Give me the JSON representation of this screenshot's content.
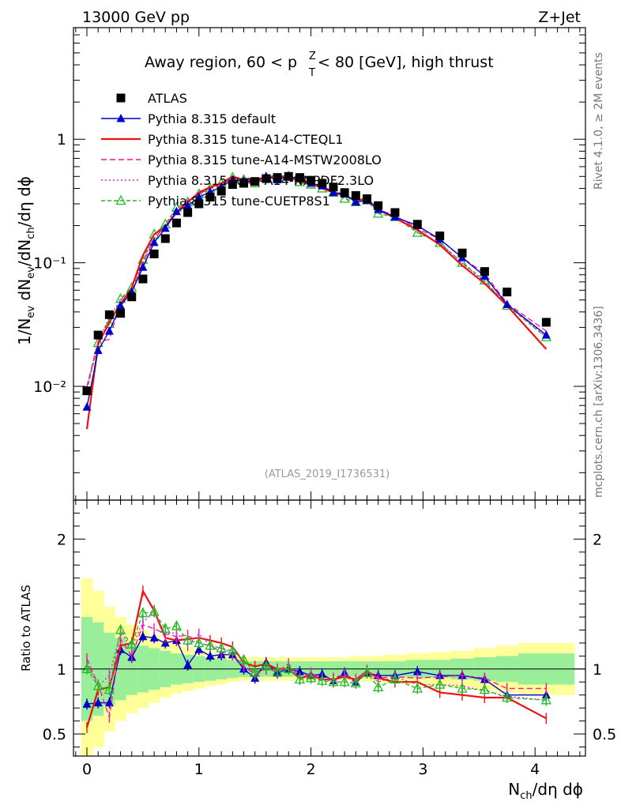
{
  "header": {
    "energy_label": "13000 GeV pp",
    "process_label": "Z+Jet",
    "plot_title": "Away region, 60 < p",
    "plot_title_sup": "Z",
    "plot_title_sub": "T",
    "plot_title_rest": " < 80 [GeV], high thrust",
    "side_label_top": "Rivet 4.1.0, ≥ 2M events",
    "side_label_bottom": "mcplots.cern.ch [arXiv:1306.3436]",
    "analysis_id": "(ATLAS_2019_I1736531)"
  },
  "chart_data": [
    {
      "type": "scatter",
      "panel": "main",
      "ylabel": "1/N_ev dN_ev/dN_ch/dη dϕ",
      "yscale": "log",
      "ylim": [
        0.0012,
        8
      ],
      "xlim": [
        -0.12,
        4.45
      ],
      "ytick_labels": [
        "10⁻²",
        "10⁻¹",
        "1"
      ],
      "ytick_values": [
        0.01,
        0.1,
        1
      ],
      "legend": [
        "ATLAS",
        "Pythia 8.315 default",
        "Pythia 8.315 tune-A14-CTEQL1",
        "Pythia 8.315 tune-A14-MSTW2008LO",
        "Pythia 8.315 tune-A14-NNPDF2.3LO",
        "Pythia 8.315 tune-CUETP8S1"
      ],
      "x": [
        0.0,
        0.1,
        0.2,
        0.3,
        0.4,
        0.5,
        0.6,
        0.7,
        0.8,
        0.9,
        1.0,
        1.1,
        1.2,
        1.3,
        1.4,
        1.5,
        1.6,
        1.7,
        1.8,
        1.9,
        2.0,
        2.1,
        2.2,
        2.3,
        2.4,
        2.5,
        2.6,
        2.75,
        2.95,
        3.15,
        3.35,
        3.55,
        3.75,
        4.1
      ],
      "series": [
        {
          "name": "ATLAS",
          "color": "#000000",
          "values": [
            0.0092,
            0.026,
            0.038,
            0.039,
            0.053,
            0.074,
            0.118,
            0.157,
            0.21,
            0.255,
            0.3,
            0.34,
            0.38,
            0.43,
            0.44,
            0.455,
            0.48,
            0.49,
            0.5,
            0.49,
            0.465,
            0.44,
            0.41,
            0.37,
            0.35,
            0.33,
            0.29,
            0.255,
            0.205,
            0.165,
            0.12,
            0.085,
            0.058,
            0.033
          ]
        },
        {
          "name": "Pythia 8.315 default",
          "color": "#0000cc",
          "values": [
            0.0068,
            0.0195,
            0.028,
            0.045,
            0.058,
            0.092,
            0.146,
            0.19,
            0.26,
            0.29,
            0.34,
            0.375,
            0.41,
            0.47,
            0.46,
            0.45,
            0.5,
            0.47,
            0.5,
            0.48,
            0.44,
            0.42,
            0.37,
            0.36,
            0.31,
            0.32,
            0.27,
            0.235,
            0.2,
            0.155,
            0.11,
            0.078,
            0.046,
            0.026
          ]
        },
        {
          "name": "Pythia 8.315 tune-A14-CTEQL1",
          "color": "#ee1111",
          "values": [
            0.0045,
            0.022,
            0.033,
            0.046,
            0.063,
            0.115,
            0.17,
            0.195,
            0.255,
            0.31,
            0.37,
            0.41,
            0.44,
            0.5,
            0.47,
            0.465,
            0.5,
            0.5,
            0.5,
            0.45,
            0.44,
            0.4,
            0.37,
            0.35,
            0.32,
            0.33,
            0.27,
            0.23,
            0.185,
            0.14,
            0.095,
            0.068,
            0.045,
            0.02
          ]
        },
        {
          "name": "Pythia 8.315 tune-A14-MSTW2008LO",
          "color": "#ff1493",
          "values": [
            0.01,
            0.023,
            0.024,
            0.048,
            0.058,
            0.099,
            0.155,
            0.2,
            0.26,
            0.32,
            0.36,
            0.4,
            0.43,
            0.48,
            0.45,
            0.44,
            0.48,
            0.48,
            0.52,
            0.45,
            0.45,
            0.4,
            0.38,
            0.355,
            0.32,
            0.33,
            0.27,
            0.24,
            0.19,
            0.155,
            0.11,
            0.082,
            0.047,
            0.028
          ]
        },
        {
          "name": "Pythia 8.315 tune-A14-NNPDF2.3LO",
          "color": "#dd22dd",
          "values": [
            0.0098,
            0.023,
            0.036,
            0.05,
            0.062,
            0.1,
            0.17,
            0.2,
            0.27,
            0.3,
            0.38,
            0.4,
            0.44,
            0.48,
            0.45,
            0.44,
            0.48,
            0.49,
            0.5,
            0.45,
            0.44,
            0.41,
            0.37,
            0.35,
            0.31,
            0.32,
            0.26,
            0.24,
            0.18,
            0.145,
            0.1,
            0.07,
            0.046,
            0.025
          ]
        },
        {
          "name": "Pythia 8.315 tune-CUETP8S1",
          "color": "#22bb22",
          "values": [
            0.0092,
            0.0225,
            0.032,
            0.051,
            0.063,
            0.106,
            0.17,
            0.205,
            0.28,
            0.31,
            0.36,
            0.4,
            0.44,
            0.49,
            0.47,
            0.44,
            0.49,
            0.48,
            0.5,
            0.45,
            0.43,
            0.4,
            0.37,
            0.33,
            0.31,
            0.32,
            0.25,
            0.235,
            0.175,
            0.145,
            0.1,
            0.072,
            0.045,
            0.025
          ]
        }
      ]
    },
    {
      "type": "scatter",
      "panel": "ratio",
      "ylabel": "Ratio to ATLAS",
      "xlabel": "N_ch/dη dϕ",
      "ylim": [
        0.33,
        2.3
      ],
      "xlim": [
        -0.12,
        4.45
      ],
      "ytick_labels": [
        "0.5",
        "1",
        "2"
      ],
      "ytick_values": [
        0.5,
        1,
        2
      ],
      "xtick_labels": [
        "0",
        "1",
        "2",
        "3",
        "4"
      ],
      "xtick_values": [
        0,
        1,
        2,
        3,
        4
      ],
      "reference": 1.0,
      "band_edges": [
        -0.05,
        0.05,
        0.15,
        0.25,
        0.35,
        0.45,
        0.55,
        0.65,
        0.75,
        0.85,
        0.95,
        1.05,
        1.15,
        1.25,
        1.35,
        1.45,
        1.55,
        1.65,
        1.75,
        1.85,
        1.95,
        2.05,
        2.15,
        2.25,
        2.35,
        2.45,
        2.55,
        2.65,
        2.85,
        3.05,
        3.25,
        3.45,
        3.65,
        3.85,
        4.35
      ],
      "band_inner": [
        0.4,
        0.36,
        0.28,
        0.24,
        0.2,
        0.18,
        0.16,
        0.14,
        0.12,
        0.11,
        0.1,
        0.09,
        0.08,
        0.07,
        0.06,
        0.06,
        0.06,
        0.06,
        0.06,
        0.06,
        0.06,
        0.06,
        0.06,
        0.06,
        0.06,
        0.06,
        0.06,
        0.06,
        0.07,
        0.07,
        0.08,
        0.09,
        0.1,
        0.12
      ],
      "band_outer": [
        0.7,
        0.6,
        0.48,
        0.4,
        0.34,
        0.3,
        0.26,
        0.22,
        0.19,
        0.17,
        0.15,
        0.13,
        0.12,
        0.1,
        0.09,
        0.09,
        0.09,
        0.09,
        0.09,
        0.09,
        0.09,
        0.09,
        0.09,
        0.09,
        0.1,
        0.1,
        0.1,
        0.11,
        0.12,
        0.13,
        0.14,
        0.16,
        0.18,
        0.2
      ],
      "series": [
        {
          "name": "Pythia 8.315 default",
          "values": [
            0.73,
            0.74,
            0.74,
            1.15,
            1.09,
            1.25,
            1.24,
            1.2,
            1.22,
            1.03,
            1.15,
            1.1,
            1.11,
            1.11,
            1.0,
            0.93,
            1.05,
            0.97,
            1.0,
            0.98,
            0.95,
            0.96,
            0.91,
            0.97,
            0.9,
            0.97,
            0.95,
            0.95,
            0.98,
            0.95,
            0.95,
            0.92,
            0.8,
            0.8
          ]
        },
        {
          "name": "Pythia 8.315 tune-A14-CTEQL1",
          "values": [
            0.55,
            0.84,
            0.86,
            1.18,
            1.2,
            1.6,
            1.45,
            1.24,
            1.22,
            1.23,
            1.24,
            1.22,
            1.2,
            1.17,
            1.05,
            1.02,
            1.04,
            1.0,
            1.0,
            0.93,
            0.95,
            0.92,
            0.92,
            0.94,
            0.92,
            0.98,
            0.93,
            0.9,
            0.9,
            0.82,
            0.8,
            0.78,
            0.78,
            0.62
          ]
        },
        {
          "name": "Pythia 8.315 tune-A14-MSTW2008LO",
          "values": [
            1.08,
            0.88,
            0.63,
            1.23,
            1.1,
            1.34,
            1.31,
            1.27,
            1.25,
            1.26,
            1.2,
            1.18,
            1.13,
            1.11,
            1.02,
            0.96,
            1.0,
            0.98,
            1.04,
            0.93,
            0.97,
            0.92,
            0.93,
            0.96,
            0.92,
            0.99,
            0.93,
            0.94,
            0.93,
            0.94,
            0.95,
            0.93,
            0.85,
            0.85
          ]
        },
        {
          "name": "Pythia 8.315 tune-A14-NNPDF2.3LO",
          "values": [
            1.05,
            0.87,
            0.95,
            1.28,
            1.17,
            1.36,
            1.44,
            1.27,
            1.28,
            1.18,
            1.27,
            1.18,
            1.16,
            1.12,
            1.02,
            0.97,
            1.0,
            1.0,
            1.0,
            0.93,
            0.95,
            0.93,
            0.9,
            0.95,
            0.89,
            0.97,
            0.9,
            0.94,
            0.88,
            0.88,
            0.87,
            0.83,
            0.79,
            0.76
          ]
        },
        {
          "name": "Pythia 8.315 tune-CUETP8S1",
          "values": [
            1.0,
            0.87,
            0.84,
            1.3,
            1.19,
            1.43,
            1.44,
            1.31,
            1.33,
            1.22,
            1.2,
            1.18,
            1.16,
            1.14,
            1.07,
            0.97,
            1.02,
            0.98,
            1.0,
            0.92,
            0.93,
            0.91,
            0.9,
            0.9,
            0.89,
            0.97,
            0.86,
            0.92,
            0.85,
            0.88,
            0.85,
            0.84,
            0.78,
            0.76
          ]
        }
      ]
    }
  ]
}
